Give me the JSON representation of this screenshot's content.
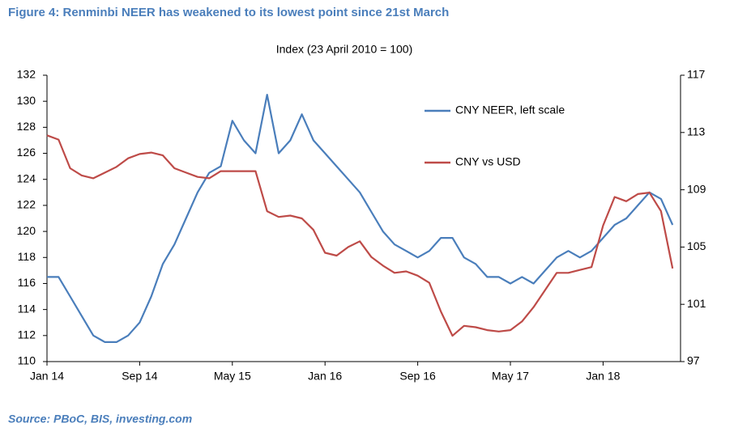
{
  "chart_data": {
    "type": "line",
    "title": "Figure 4: Renminbi NEER has weakened to its lowest point since 21st March",
    "subtitle": "Index (23 April 2010 = 100)",
    "source": "Source: PBoC, BIS, investing.com",
    "categories": [
      "Jan 14",
      null,
      null,
      null,
      null,
      null,
      null,
      null,
      "Sep 14",
      null,
      null,
      null,
      null,
      null,
      null,
      null,
      "May 15",
      null,
      null,
      null,
      null,
      null,
      null,
      null,
      "Jan 16",
      null,
      null,
      null,
      null,
      null,
      null,
      null,
      "Sep 16",
      null,
      null,
      null,
      null,
      null,
      null,
      null,
      "May 17",
      null,
      null,
      null,
      null,
      null,
      null,
      null,
      "Jan 18",
      null,
      null,
      null,
      null,
      null,
      null
    ],
    "series": [
      {
        "name": "CNY NEER, left scale",
        "color": "#4a7ebb",
        "values": [
          116.5,
          116.5,
          115,
          113.5,
          112,
          111.5,
          111.5,
          112,
          113,
          115,
          117.5,
          119,
          121,
          123,
          124.5,
          125,
          128.5,
          127,
          126,
          130.5,
          126,
          127,
          129,
          127,
          126,
          125,
          124,
          123,
          121.5,
          120,
          119,
          118.5,
          118,
          118.5,
          119.5,
          119.5,
          118,
          117.5,
          116.5,
          116.5,
          116,
          116.5,
          116,
          117,
          118,
          118.5,
          118,
          118.5,
          119.5,
          120.5,
          121,
          122,
          123,
          122.5,
          120.5
        ]
      },
      {
        "name": "CNY vs USD",
        "color": "#be4b48",
        "axis": "y2",
        "values": [
          112.8,
          112.5,
          110.5,
          110,
          109.8,
          110.2,
          110.6,
          111.2,
          111.5,
          111.6,
          111.4,
          110.5,
          110.2,
          109.9,
          109.8,
          110.3,
          110.3,
          110.3,
          110.3,
          107.5,
          107.1,
          107.2,
          107,
          106.2,
          104.6,
          104.4,
          105,
          105.4,
          104.3,
          103.7,
          103.2,
          103.3,
          103,
          102.5,
          100.5,
          98.8,
          99.5,
          99.4,
          99.2,
          99.1,
          99.2,
          99.8,
          100.8,
          102,
          103.2,
          103.2,
          103.4,
          103.6,
          106.5,
          108.5,
          108.2,
          108.7,
          108.8,
          107.5,
          103.5
        ]
      }
    ],
    "ylim": [
      110,
      132
    ],
    "yticks": [
      110,
      112,
      114,
      116,
      118,
      120,
      122,
      124,
      126,
      128,
      130,
      132
    ],
    "y2lim": [
      97,
      117
    ],
    "y2ticks": [
      97,
      101,
      105,
      109,
      113,
      117
    ]
  }
}
